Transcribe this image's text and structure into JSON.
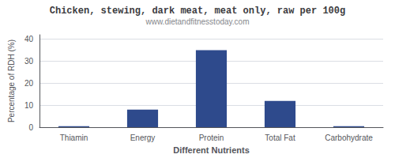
{
  "chart_data": {
    "type": "bar",
    "title": "Chicken, stewing, dark meat, meat only, raw per 100g",
    "subtitle": "www.dietandfitnesstoday.com",
    "xlabel": "Different Nutrients",
    "ylabel": "Percentage of RDH (%)",
    "categories": [
      "Thiamin",
      "Energy",
      "Protein",
      "Total Fat",
      "Carbohydrate"
    ],
    "values": [
      0.5,
      8,
      35,
      12,
      0.5
    ],
    "color": "#2e4a8c",
    "ylim": [
      0,
      42
    ],
    "yticks": [
      0,
      10,
      20,
      30,
      40
    ],
    "grid": true
  }
}
